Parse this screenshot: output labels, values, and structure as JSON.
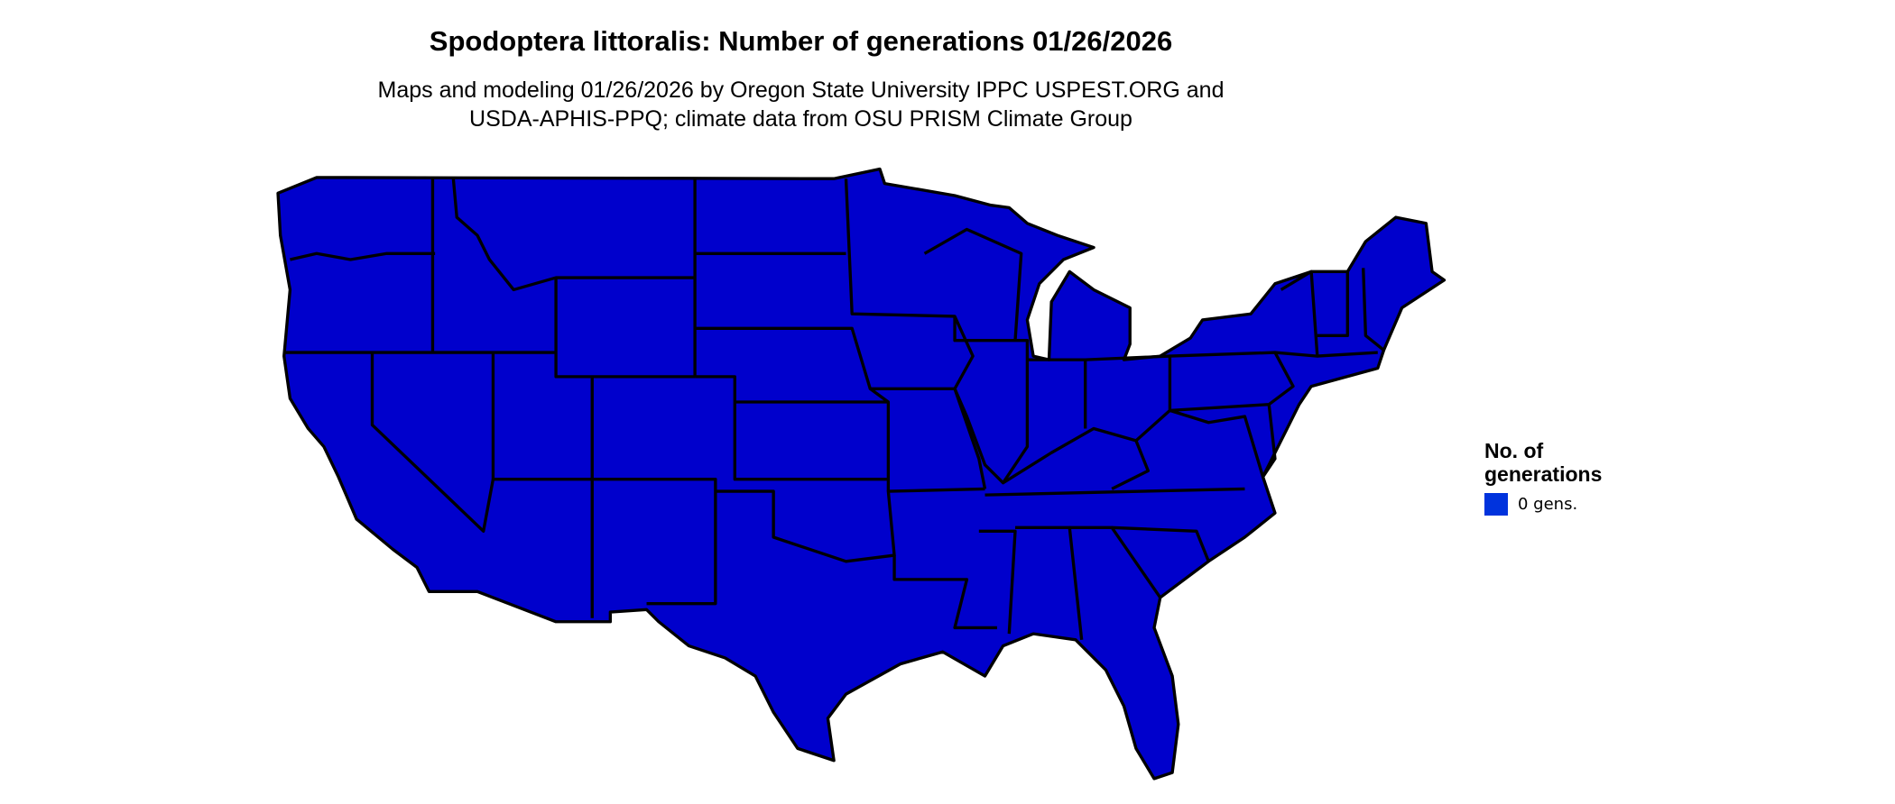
{
  "title": "Spodoptera littoralis: Number of generations 01/26/2026",
  "subtitle_line1": "Maps and modeling 01/26/2026 by Oregon State University IPPC USPEST.ORG and",
  "subtitle_line2": "USDA-APHIS-PPQ; climate data from OSU PRISM Climate Group",
  "map": {
    "region": "Contiguous United States",
    "fill_color": "#0000CC",
    "border_color": "#000000"
  },
  "legend": {
    "title_line1": "No. of",
    "title_line2": "generations",
    "items": [
      {
        "label": "0 gens.",
        "color": "#0033DD"
      }
    ]
  }
}
